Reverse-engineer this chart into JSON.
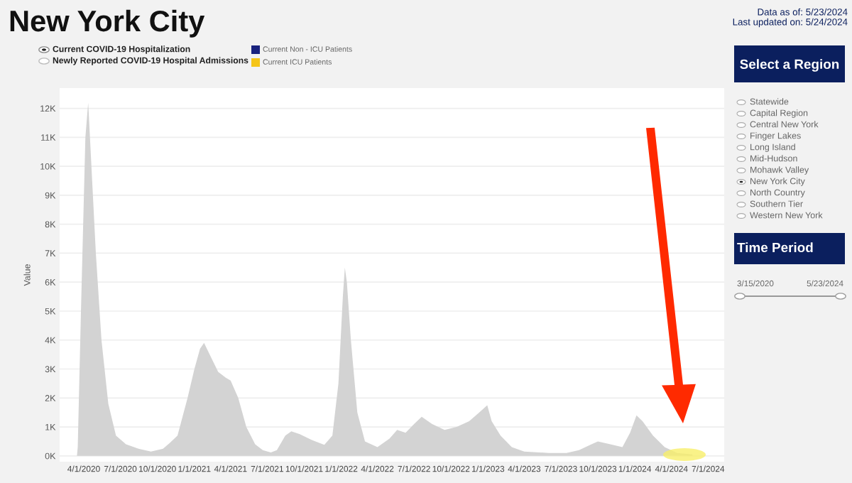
{
  "chart_data": {
    "type": "area",
    "title": "New York City",
    "ylabel": "Value",
    "x": [
      "2020-03-15",
      "2020-03-17",
      "2020-03-25",
      "2020-04-05",
      "2020-04-12",
      "2020-04-20",
      "2020-05-01",
      "2020-05-15",
      "2020-06-01",
      "2020-06-20",
      "2020-07-15",
      "2020-08-15",
      "2020-09-15",
      "2020-10-15",
      "2020-11-01",
      "2020-11-20",
      "2020-12-15",
      "2021-01-01",
      "2021-01-15",
      "2021-01-25",
      "2021-02-15",
      "2021-03-01",
      "2021-03-20",
      "2021-04-01",
      "2021-04-20",
      "2021-05-10",
      "2021-06-01",
      "2021-06-20",
      "2021-07-10",
      "2021-07-25",
      "2021-08-15",
      "2021-08-30",
      "2021-09-20",
      "2021-10-20",
      "2021-11-20",
      "2021-12-10",
      "2021-12-25",
      "2022-01-05",
      "2022-01-10",
      "2022-01-15",
      "2022-01-25",
      "2022-02-10",
      "2022-03-01",
      "2022-04-01",
      "2022-05-01",
      "2022-05-20",
      "2022-06-10",
      "2022-07-01",
      "2022-07-20",
      "2022-08-15",
      "2022-09-15",
      "2022-10-15",
      "2022-11-15",
      "2022-12-10",
      "2022-12-30",
      "2023-01-10",
      "2023-02-01",
      "2023-03-01",
      "2023-04-01",
      "2023-06-01",
      "2023-07-15",
      "2023-08-15",
      "2023-09-15",
      "2023-10-01",
      "2023-11-01",
      "2023-12-01",
      "2023-12-20",
      "2024-01-05",
      "2024-01-20",
      "2024-02-15",
      "2024-03-15",
      "2024-04-15",
      "2024-05-23"
    ],
    "series": [
      {
        "color": "#d3d3d3",
        "values": [
          0,
          300,
          5000,
          11000,
          12200,
          10000,
          7000,
          4000,
          1800,
          700,
          400,
          250,
          150,
          250,
          450,
          700,
          2000,
          3000,
          3700,
          3900,
          3300,
          2900,
          2700,
          2600,
          2000,
          1000,
          400,
          200,
          120,
          200,
          700,
          850,
          750,
          550,
          380,
          700,
          2500,
          5500,
          6500,
          6000,
          4000,
          1500,
          500,
          300,
          600,
          900,
          800,
          1100,
          1350,
          1100,
          900,
          1000,
          1200,
          1500,
          1750,
          1200,
          700,
          300,
          150,
          100,
          100,
          200,
          400,
          500,
          400,
          300,
          800,
          1400,
          1200,
          700,
          300,
          100,
          50
        ]
      }
    ],
    "xlim": [
      "2020-02-01",
      "2024-08-10"
    ],
    "xticks": [
      {
        "value": "2020-04-01",
        "label": "4/1/2020"
      },
      {
        "value": "2020-07-01",
        "label": "7/1/2020"
      },
      {
        "value": "2020-10-01",
        "label": "10/1/2020"
      },
      {
        "value": "2021-01-01",
        "label": "1/1/2021"
      },
      {
        "value": "2021-04-01",
        "label": "4/1/2021"
      },
      {
        "value": "2021-07-01",
        "label": "7/1/2021"
      },
      {
        "value": "2021-10-01",
        "label": "10/1/2021"
      },
      {
        "value": "2022-01-01",
        "label": "1/1/2022"
      },
      {
        "value": "2022-04-01",
        "label": "4/1/2022"
      },
      {
        "value": "2022-07-01",
        "label": "7/1/2022"
      },
      {
        "value": "2022-10-01",
        "label": "10/1/2022"
      },
      {
        "value": "2023-01-01",
        "label": "1/1/2023"
      },
      {
        "value": "2023-04-01",
        "label": "4/1/2023"
      },
      {
        "value": "2023-07-01",
        "label": "7/1/2023"
      },
      {
        "value": "2023-10-01",
        "label": "10/1/2023"
      },
      {
        "value": "2024-01-01",
        "label": "1/1/2024"
      },
      {
        "value": "2024-04-01",
        "label": "4/1/2024"
      },
      {
        "value": "2024-07-01",
        "label": "7/1/2024"
      }
    ],
    "ylim": [
      -200,
      12700
    ],
    "yticks": [
      {
        "value": 0,
        "label": "0K"
      },
      {
        "value": 1000,
        "label": "1K"
      },
      {
        "value": 2000,
        "label": "2K"
      },
      {
        "value": 3000,
        "label": "3K"
      },
      {
        "value": 4000,
        "label": "4K"
      },
      {
        "value": 5000,
        "label": "5K"
      },
      {
        "value": 6000,
        "label": "6K"
      },
      {
        "value": 7000,
        "label": "7K"
      },
      {
        "value": 8000,
        "label": "8K"
      },
      {
        "value": 9000,
        "label": "9K"
      },
      {
        "value": 10000,
        "label": "10K"
      },
      {
        "value": 11000,
        "label": "11K"
      },
      {
        "value": 12000,
        "label": "12K"
      }
    ],
    "grid": "y",
    "annotations": [
      "Data as of: 5/23/2024",
      "Last updated on: 5/24/2024",
      "Current COVID-19 Hospitalization",
      "Newly Reported COVID-19 Hospital Admissions",
      "Current Non - ICU Patients",
      "Current ICU Patients",
      "Select a Region",
      "Statewide",
      "Capital Region",
      "Central New York",
      "Finger Lakes",
      "Long Island",
      "Mid-Hudson",
      "Mohawk Valley",
      "New York City",
      "North Country",
      "Southern Tier",
      "Western New York",
      "Time Period",
      "3/15/2020",
      "5/23/2024"
    ]
  }
}
